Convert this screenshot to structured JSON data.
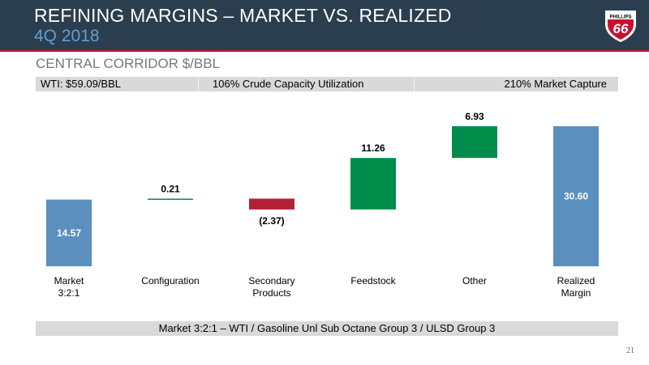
{
  "header": {
    "title": "REFINING MARGINS – MARKET VS. REALIZED",
    "period": "4Q 2018",
    "logo_top_text": "PHILLIPS",
    "logo_number": "66"
  },
  "subtitle": "CENTRAL CORRIDOR $/BBL",
  "info_bar": {
    "wti": "WTI: $59.09/BBL",
    "utilization": "106% Crude Capacity Utilization",
    "capture": "210% Market Capture"
  },
  "footnote": "Market 3:2:1 – WTI / Gasoline Unl Sub Octane Group 3 / ULSD Group 3",
  "page_number": "21",
  "colors": {
    "header_bg": "#2b3e4f",
    "accent_red": "#c8102e",
    "total_blue": "#5b8fbd",
    "increase_green": "#008d4c",
    "decrease_red": "#b22234"
  },
  "chart_data": {
    "type": "bar",
    "subtype": "waterfall",
    "ylim": [
      0,
      31.5
    ],
    "categories": [
      {
        "lines": [
          "Market",
          "3:2:1"
        ],
        "value": 14.57,
        "label": "14.57",
        "kind": "total"
      },
      {
        "lines": [
          "Configuration"
        ],
        "value": 0.21,
        "label": "0.21",
        "kind": "increase"
      },
      {
        "lines": [
          "Secondary",
          "Products"
        ],
        "value": -2.37,
        "label": "(2.37)",
        "kind": "decrease"
      },
      {
        "lines": [
          "Feedstock"
        ],
        "value": 11.26,
        "label": "11.26",
        "kind": "increase"
      },
      {
        "lines": [
          "Other"
        ],
        "value": 6.93,
        "label": "6.93",
        "kind": "increase"
      },
      {
        "lines": [
          "Realized",
          "Margin"
        ],
        "value": 30.6,
        "label": "30.60",
        "kind": "total"
      }
    ]
  }
}
